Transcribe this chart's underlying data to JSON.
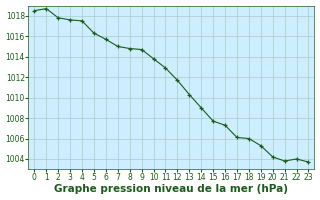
{
  "x": [
    0,
    1,
    2,
    3,
    4,
    5,
    6,
    7,
    8,
    9,
    10,
    11,
    12,
    13,
    14,
    15,
    16,
    17,
    18,
    19,
    20,
    21,
    22,
    23
  ],
  "y": [
    1018.5,
    1018.7,
    1017.8,
    1017.6,
    1017.5,
    1016.3,
    1015.7,
    1015.0,
    1014.8,
    1014.7,
    1013.8,
    1012.9,
    1011.7,
    1010.3,
    1009.0,
    1007.7,
    1007.3,
    1006.1,
    1006.0,
    1005.3,
    1004.2,
    1003.8,
    1004.0,
    1003.7
  ],
  "ylim": [
    1003,
    1019
  ],
  "yticks": [
    1004,
    1006,
    1008,
    1010,
    1012,
    1014,
    1016,
    1018
  ],
  "xticks": [
    0,
    1,
    2,
    3,
    4,
    5,
    6,
    7,
    8,
    9,
    10,
    11,
    12,
    13,
    14,
    15,
    16,
    17,
    18,
    19,
    20,
    21,
    22,
    23
  ],
  "xlabel": "Graphe pression niveau de la mer (hPa)",
  "line_color": "#1a5c1a",
  "marker_color": "#1a5c1a",
  "plot_bg_color": "#cceeff",
  "fig_bg_color": "#ffffff",
  "grid_color": "#aacccc",
  "xlabel_color": "#1a5c1a",
  "tick_label_fontsize": 5.5,
  "xlabel_fontsize": 7.5
}
